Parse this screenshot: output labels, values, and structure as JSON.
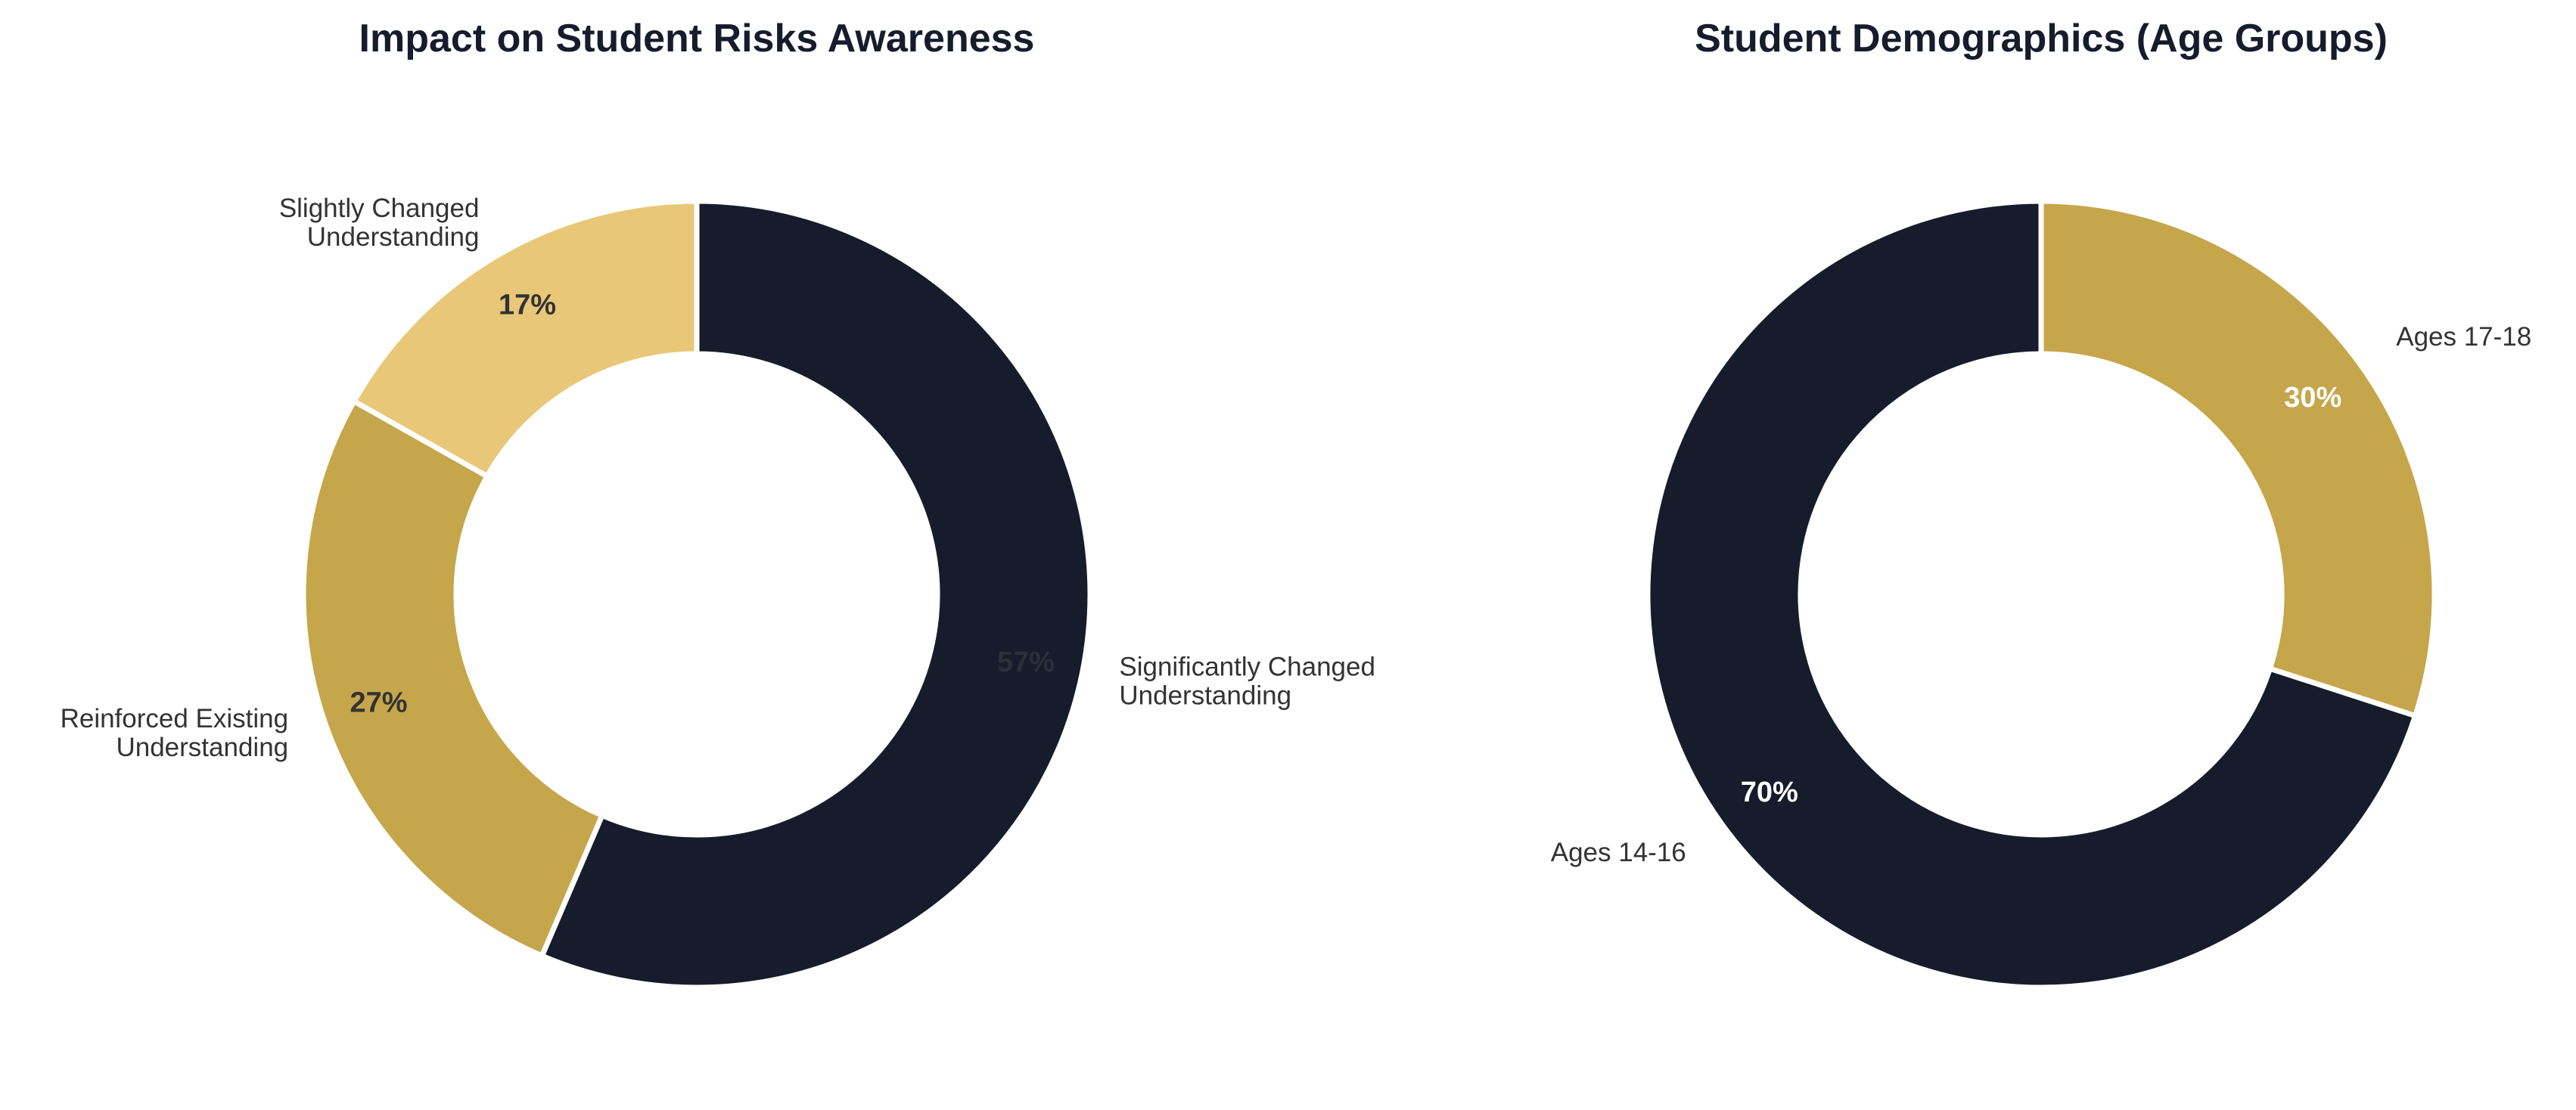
{
  "chart_data": [
    {
      "type": "pie",
      "style": "donut",
      "title": "Impact on Student Risks Awareness",
      "categories": [
        "Significantly Changed\nUnderstanding",
        "Reinforced Existing\nUnderstanding",
        "Slightly Changed\nUnderstanding"
      ],
      "values": [
        57,
        27,
        17
      ],
      "value_labels": [
        "57%",
        "27%",
        "17%"
      ],
      "colors": [
        "#171c2c",
        "#c6a64b",
        "#e8c878"
      ],
      "value_label_colors": [
        "#2b2f3a",
        "#333333",
        "#333333"
      ],
      "start_angle_deg": 90,
      "direction": "clockwise",
      "legend": "none"
    },
    {
      "type": "pie",
      "style": "donut",
      "title": "Student Demographics (Age Groups)",
      "categories": [
        "Ages 17-18",
        "Ages 14-16"
      ],
      "values": [
        30,
        70
      ],
      "value_labels": [
        "30%",
        "70%"
      ],
      "colors": [
        "#c6a64b",
        "#171c2c"
      ],
      "value_label_colors": [
        "#ffffff",
        "#ffffff"
      ],
      "start_angle_deg": 90,
      "direction": "clockwise",
      "legend": "none"
    }
  ],
  "title_color": "#171c2c"
}
